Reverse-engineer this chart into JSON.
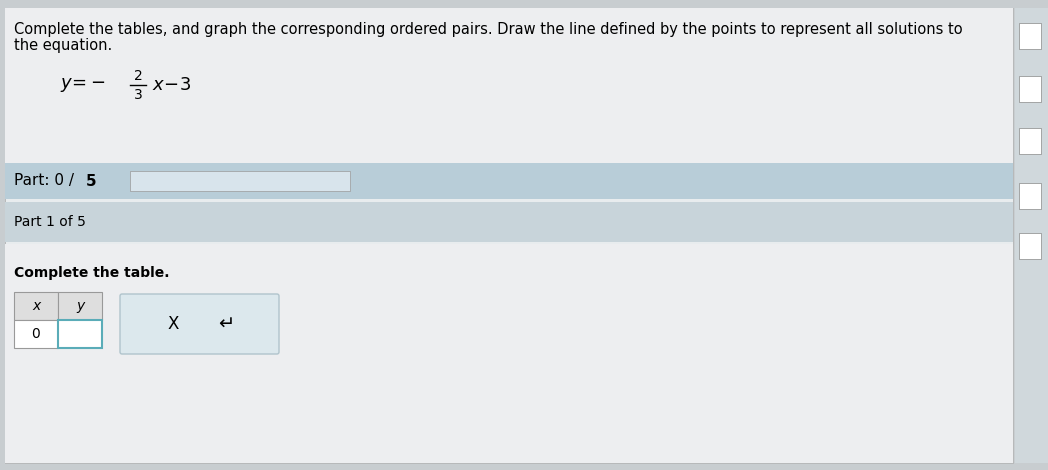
{
  "bg_color": "#c8cdd0",
  "main_bg": "#f0f1f2",
  "header_text_line1": "Complete the tables, and graph the corresponding ordered pairs. Draw the line defined by the points to represent all solutions to",
  "header_text_line2": "the equation.",
  "part_label_bold": "Part: 0 / ",
  "part_label_bold2": "5",
  "part1_label": "Part 1 of 5",
  "complete_table_text": "Complete the table.",
  "table_x_label": "x",
  "table_y_label": "y",
  "table_x_val": "0",
  "input_box_border": "#5aacb8",
  "input_box_fill": "#ffffff",
  "button_x_label": "X",
  "button_undo_label": "↵",
  "button_border": "#b0c4cc",
  "button_fill": "#dce8ed",
  "white": "#ffffff",
  "part_band_bg": "#b8cdd8",
  "part1_band_bg": "#c8d4da",
  "progress_bar_fill": "#d8e4ec",
  "main_content_bg": "#e8ecee",
  "bottom_content_bg": "#eaecee",
  "text_color": "#000000",
  "right_panel_bg": "#d0d8dc",
  "header_fontsize": 10.5,
  "body_fontsize": 10,
  "fig_width": 10.48,
  "fig_height": 4.7,
  "dpi": 100
}
